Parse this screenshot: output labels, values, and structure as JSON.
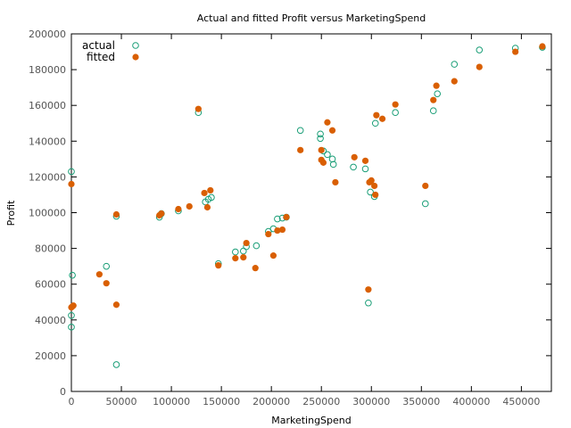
{
  "chart_data": {
    "type": "scatter",
    "title": "Actual and fitted Profit versus MarketingSpend",
    "xlabel": "MarketingSpend",
    "ylabel": "Profit",
    "xlim": [
      0,
      480000
    ],
    "ylim": [
      0,
      200000
    ],
    "xticks": [
      0,
      50000,
      100000,
      150000,
      200000,
      250000,
      300000,
      350000,
      400000,
      450000
    ],
    "yticks": [
      0,
      20000,
      40000,
      60000,
      80000,
      100000,
      120000,
      140000,
      160000,
      180000,
      200000
    ],
    "grid": false,
    "legend_position": "top-left",
    "series": [
      {
        "name": "actual",
        "marker": "hollow-circle",
        "color": "#1a9e77",
        "points": [
          [
            0,
            123000
          ],
          [
            0,
            42500
          ],
          [
            0,
            36000
          ],
          [
            1000,
            65000
          ],
          [
            35000,
            70000
          ],
          [
            45000,
            98000
          ],
          [
            45000,
            15000
          ],
          [
            88000,
            97500
          ],
          [
            90000,
            99500
          ],
          [
            107000,
            101000
          ],
          [
            127000,
            156000
          ],
          [
            134000,
            106000
          ],
          [
            137000,
            107500
          ],
          [
            140000,
            108500
          ],
          [
            147000,
            71500
          ],
          [
            164000,
            78000
          ],
          [
            172000,
            78500
          ],
          [
            175000,
            81000
          ],
          [
            185000,
            81500
          ],
          [
            197000,
            89500
          ],
          [
            202000,
            91000
          ],
          [
            206000,
            96500
          ],
          [
            211000,
            97000
          ],
          [
            215000,
            97500
          ],
          [
            229000,
            146000
          ],
          [
            249000,
            144000
          ],
          [
            249000,
            141500
          ],
          [
            252000,
            134500
          ],
          [
            256000,
            132500
          ],
          [
            261000,
            130000
          ],
          [
            262000,
            127000
          ],
          [
            282000,
            125500
          ],
          [
            294000,
            124500
          ],
          [
            297000,
            49500
          ],
          [
            299000,
            111500
          ],
          [
            303000,
            109000
          ],
          [
            304000,
            150000
          ],
          [
            324000,
            156000
          ],
          [
            354000,
            105000
          ],
          [
            362000,
            157000
          ],
          [
            366000,
            166500
          ],
          [
            383000,
            183000
          ],
          [
            408000,
            191000
          ],
          [
            444000,
            192000
          ],
          [
            471000,
            192500
          ]
        ]
      },
      {
        "name": "fitted",
        "marker": "filled-circle",
        "color": "#d95f02",
        "points": [
          [
            0,
            116000
          ],
          [
            0,
            47000
          ],
          [
            1000,
            47500
          ],
          [
            2000,
            48000
          ],
          [
            28000,
            65500
          ],
          [
            35000,
            60500
          ],
          [
            45000,
            99000
          ],
          [
            45000,
            48500
          ],
          [
            88000,
            98500
          ],
          [
            90000,
            99500
          ],
          [
            107000,
            102000
          ],
          [
            118000,
            103500
          ],
          [
            127000,
            158000
          ],
          [
            133000,
            111000
          ],
          [
            136000,
            103000
          ],
          [
            139000,
            112500
          ],
          [
            147000,
            70500
          ],
          [
            164000,
            74500
          ],
          [
            172000,
            75000
          ],
          [
            175000,
            83000
          ],
          [
            184000,
            69000
          ],
          [
            197000,
            88000
          ],
          [
            202000,
            76000
          ],
          [
            206000,
            90000
          ],
          [
            211000,
            90500
          ],
          [
            215000,
            97500
          ],
          [
            229000,
            135000
          ],
          [
            250000,
            135000
          ],
          [
            250000,
            129500
          ],
          [
            252000,
            128000
          ],
          [
            256000,
            150500
          ],
          [
            261000,
            146000
          ],
          [
            264000,
            117000
          ],
          [
            283000,
            131000
          ],
          [
            294000,
            129000
          ],
          [
            297000,
            57000
          ],
          [
            298000,
            117000
          ],
          [
            300000,
            118000
          ],
          [
            303000,
            115000
          ],
          [
            304000,
            110000
          ],
          [
            305000,
            154500
          ],
          [
            311000,
            152500
          ],
          [
            324000,
            160500
          ],
          [
            354000,
            115000
          ],
          [
            362000,
            163000
          ],
          [
            365000,
            171000
          ],
          [
            383000,
            173500
          ],
          [
            408000,
            181500
          ],
          [
            444000,
            190000
          ],
          [
            471000,
            193000
          ]
        ]
      }
    ]
  }
}
